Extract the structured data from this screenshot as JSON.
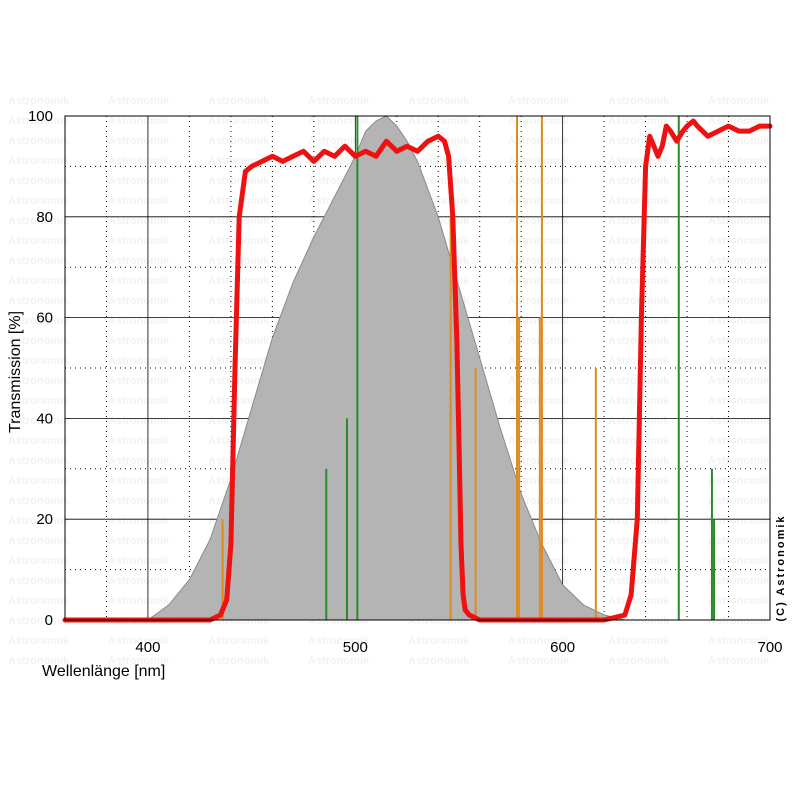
{
  "chart_data": {
    "type": "line",
    "xlabel": "Wellenlänge [nm]",
    "ylabel": "Transmission [%]",
    "xlim": [
      360,
      700
    ],
    "ylim": [
      0,
      100
    ],
    "x_ticks": [
      400,
      500,
      600,
      700
    ],
    "y_ticks": [
      0,
      20,
      40,
      60,
      80,
      100
    ],
    "grid": true,
    "copyright": "(C) Astronomik",
    "watermark": "Astronomik",
    "colors": {
      "filter_curve": "#ee1111",
      "sensitivity_fill": "#b4b4b4",
      "sensitivity_edge": "#8a8a8a",
      "emission_orange": "#dd8a1e",
      "emission_green": "#2a8a2a",
      "grid_major": "#000000",
      "grid_minor": "#000000"
    },
    "sensitivity_curve": {
      "x": [
        360,
        400,
        410,
        420,
        430,
        440,
        450,
        460,
        470,
        480,
        490,
        500,
        505,
        510,
        515,
        520,
        525,
        530,
        540,
        550,
        560,
        570,
        580,
        590,
        600,
        610,
        620,
        630,
        700
      ],
      "y": [
        0,
        0,
        3,
        8,
        16,
        28,
        42,
        56,
        67,
        76,
        84,
        92,
        97,
        99,
        100,
        98,
        95,
        91,
        80,
        66,
        52,
        38,
        25,
        15,
        7,
        3,
        1,
        0,
        0
      ]
    },
    "filter_curve": {
      "x": [
        360,
        430,
        435,
        438,
        440,
        442,
        444,
        447,
        450,
        455,
        460,
        465,
        470,
        475,
        480,
        485,
        490,
        495,
        500,
        505,
        510,
        515,
        520,
        525,
        530,
        535,
        540,
        543,
        545,
        547,
        549,
        550,
        551,
        552,
        553,
        555,
        560,
        565,
        580,
        620,
        630,
        633,
        636,
        638,
        640,
        642,
        644,
        646,
        648,
        650,
        652,
        655,
        658,
        660,
        663,
        665,
        670,
        675,
        680,
        685,
        690,
        695,
        700
      ],
      "y": [
        0,
        0,
        1,
        4,
        15,
        50,
        80,
        89,
        90,
        91,
        92,
        91,
        92,
        93,
        91,
        93,
        92,
        94,
        92,
        93,
        92,
        95,
        93,
        94,
        93,
        95,
        96,
        95,
        92,
        80,
        55,
        35,
        15,
        5,
        2,
        1,
        0,
        0,
        0,
        0,
        1,
        5,
        20,
        60,
        90,
        96,
        94,
        92,
        94,
        98,
        97,
        95,
        97,
        98,
        99,
        98,
        96,
        97,
        98,
        97,
        97,
        98,
        98
      ]
    },
    "emission_lines": [
      {
        "wavelength": 436,
        "value": 20,
        "color": "orange"
      },
      {
        "wavelength": 486,
        "value": 30,
        "color": "green"
      },
      {
        "wavelength": 496,
        "value": 40,
        "color": "green"
      },
      {
        "wavelength": 501,
        "value": 100,
        "color": "green"
      },
      {
        "wavelength": 546,
        "value": 80,
        "color": "orange"
      },
      {
        "wavelength": 558,
        "value": 50,
        "color": "orange"
      },
      {
        "wavelength": 578,
        "value": 100,
        "color": "orange"
      },
      {
        "wavelength": 579,
        "value": 60,
        "color": "orange"
      },
      {
        "wavelength": 590,
        "value": 100,
        "color": "orange"
      },
      {
        "wavelength": 589,
        "value": 60,
        "color": "orange"
      },
      {
        "wavelength": 616,
        "value": 50,
        "color": "orange"
      },
      {
        "wavelength": 656,
        "value": 100,
        "color": "green"
      },
      {
        "wavelength": 672,
        "value": 30,
        "color": "green"
      },
      {
        "wavelength": 673,
        "value": 20,
        "color": "green"
      }
    ]
  }
}
